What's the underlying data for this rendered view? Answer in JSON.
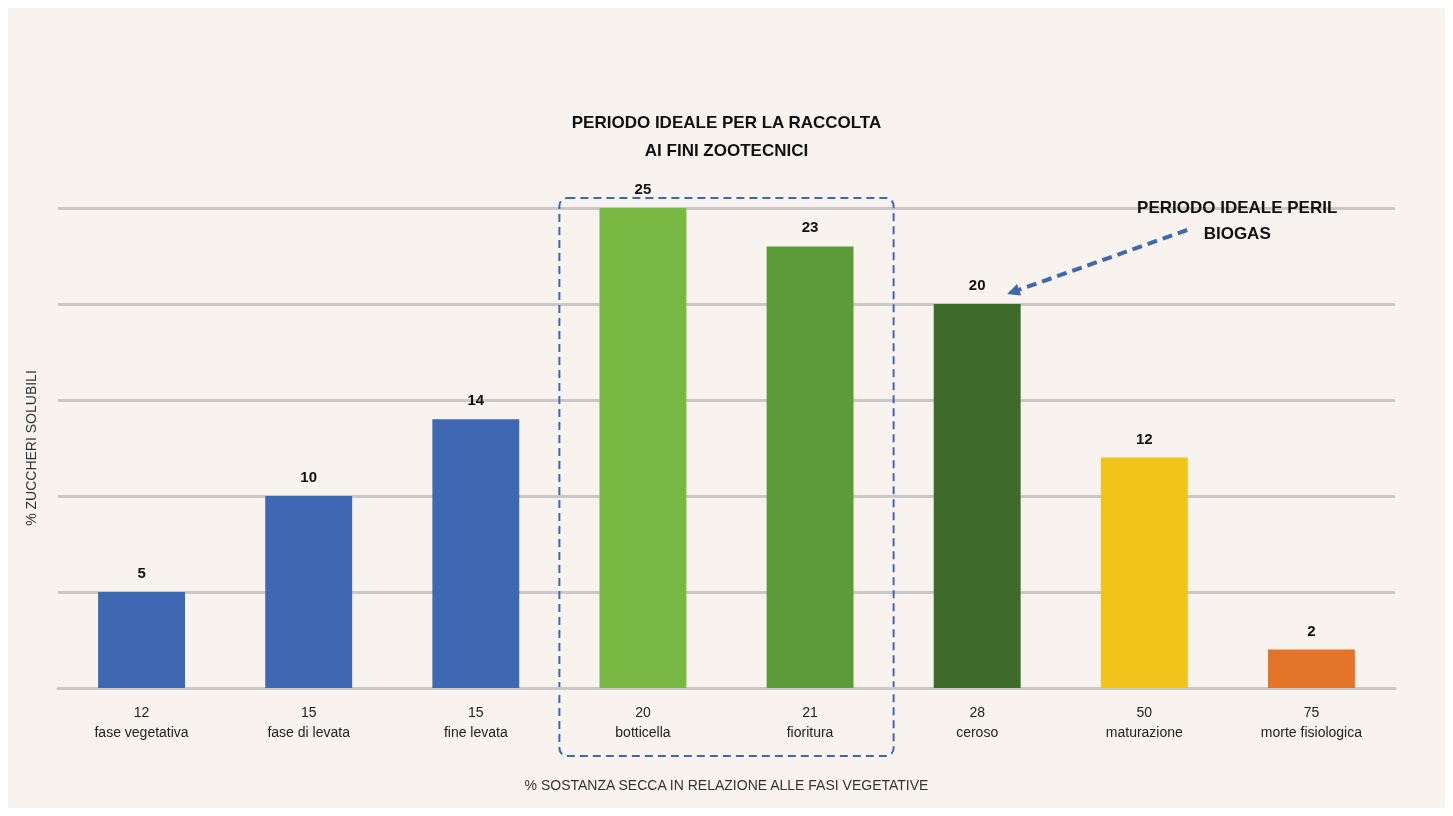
{
  "chart_data": {
    "type": "bar",
    "categories": [
      "12\nfase vegetativa",
      "15\nfase di levata",
      "15\nfine levata",
      "20\nbotticella",
      "21\nfioritura",
      "28\nceroso",
      "50\nmaturazione",
      "75\nmorte fisiologica"
    ],
    "values": [
      5,
      10,
      14,
      25,
      23,
      20,
      12,
      2
    ],
    "colors": [
      "#3f68b2",
      "#3f68b2",
      "#3f68b2",
      "#78b843",
      "#5c9a3a",
      "#3e6a2a",
      "#f2c31a",
      "#e5742b"
    ],
    "data_labels": true,
    "xlabel": "% SOSTANZA SECCA IN RELAZIONE ALLE FASI VEGETATIVE",
    "ylabel": "% ZUCCHERI SOLUBILI",
    "ylim": [
      0,
      25
    ],
    "yticks": [
      0,
      5,
      10,
      15,
      20,
      25
    ],
    "grid": "y",
    "tick_labels": "x",
    "annotations": [
      "PERIODO IDEALE PER LA RACCOLTA\nAI FINI ZOOTECNICI",
      "PERIODO IDEALE PERIL\nBIOGAS"
    ]
  }
}
